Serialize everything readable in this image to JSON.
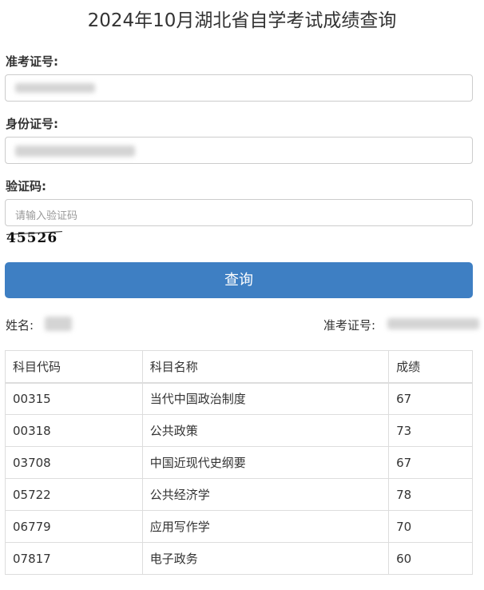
{
  "title": "2024年10月湖北省自学考试成绩查询",
  "form": {
    "exam_no_label": "准考证号:",
    "id_no_label": "身份证号:",
    "captcha_label": "验证码:",
    "captcha_placeholder": "请输入验证码",
    "captcha_image_text": "45526",
    "submit_label": "查询"
  },
  "result": {
    "name_label": "姓名:",
    "exam_no_label": "准考证号:",
    "table": {
      "headers": [
        "科目代码",
        "科目名称",
        "成绩"
      ],
      "rows": [
        [
          "00315",
          "当代中国政治制度",
          "67"
        ],
        [
          "00318",
          "公共政策",
          "73"
        ],
        [
          "03708",
          "中国近现代史纲要",
          "67"
        ],
        [
          "05722",
          "公共经济学",
          "78"
        ],
        [
          "06779",
          "应用写作学",
          "70"
        ],
        [
          "07817",
          "电子政务",
          "60"
        ]
      ]
    }
  },
  "colors": {
    "button": "#3e7fc3"
  }
}
